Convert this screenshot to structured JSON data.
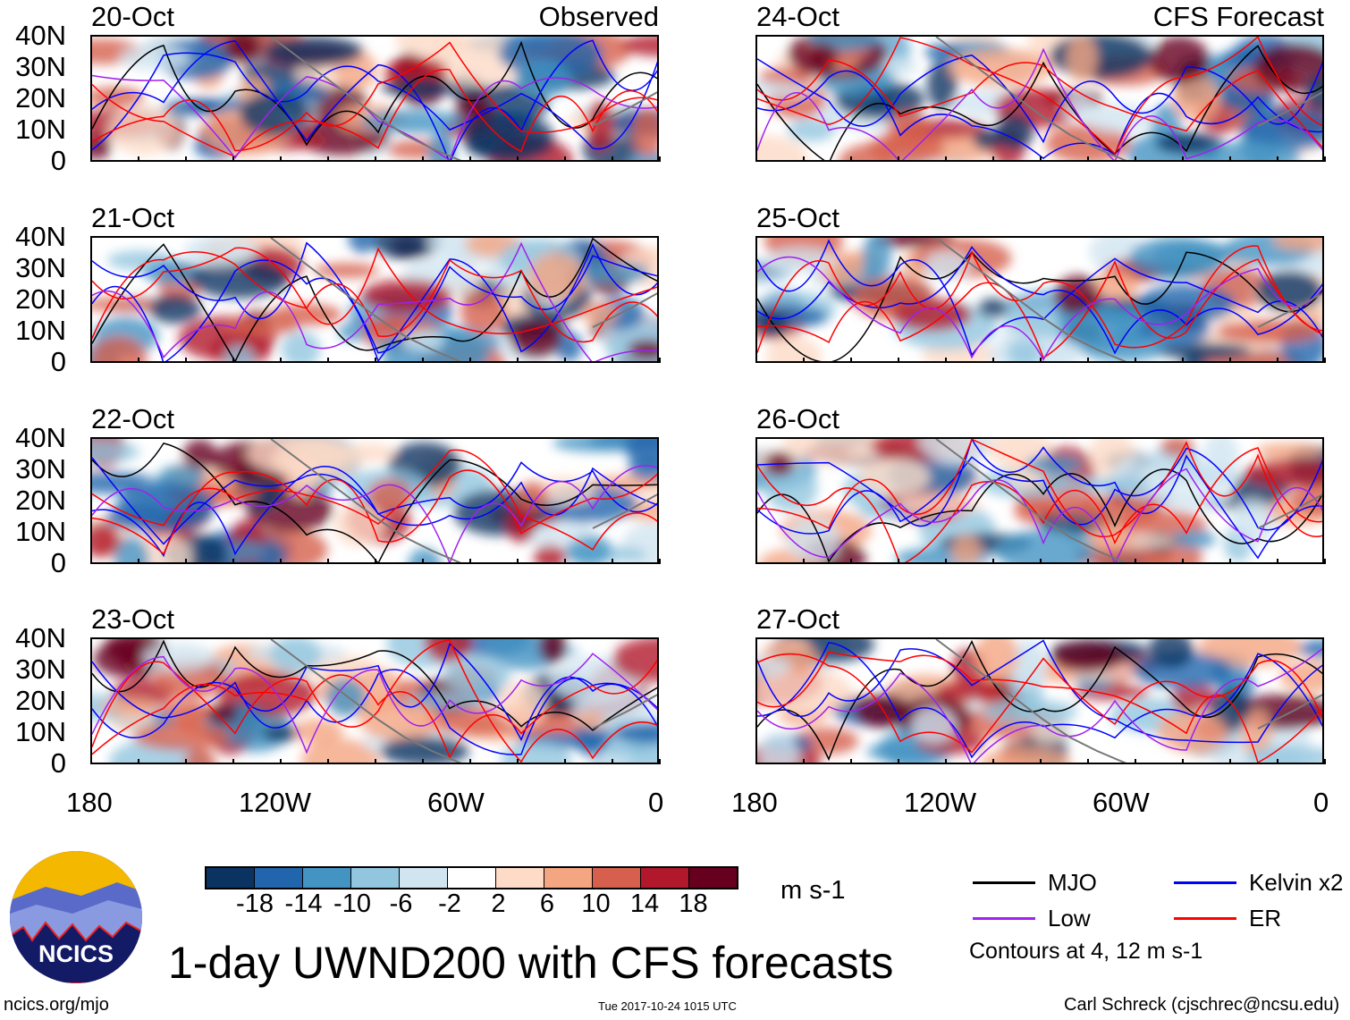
{
  "title": "1-day UWND200 with CFS forecasts",
  "footer": {
    "left": "ncics.org/mjo",
    "center": "Tue 2017-10-24 1015 UTC",
    "right": "Carl Schreck (cjschrec@ncsu.edu)"
  },
  "logo_text": "NCICS",
  "columns": {
    "left": "Observed",
    "right": "CFS Forecast"
  },
  "panels": [
    {
      "date": "20-Oct",
      "col": 0,
      "row": 0
    },
    {
      "date": "21-Oct",
      "col": 0,
      "row": 1
    },
    {
      "date": "22-Oct",
      "col": 0,
      "row": 2
    },
    {
      "date": "23-Oct",
      "col": 0,
      "row": 3
    },
    {
      "date": "24-Oct",
      "col": 1,
      "row": 0
    },
    {
      "date": "25-Oct",
      "col": 1,
      "row": 1
    },
    {
      "date": "26-Oct",
      "col": 1,
      "row": 2
    },
    {
      "date": "27-Oct",
      "col": 1,
      "row": 3
    }
  ],
  "lat_labels": [
    "40N",
    "30N",
    "20N",
    "10N",
    "0"
  ],
  "lon_labels": [
    "180",
    "120W",
    "60W",
    "0"
  ],
  "colorbar": {
    "colors": [
      "#0a3361",
      "#2166ac",
      "#4393c3",
      "#92c5de",
      "#d1e5f0",
      "#ffffff",
      "#fddbc7",
      "#f4a582",
      "#d6604d",
      "#b2182b",
      "#67001f"
    ],
    "labels": [
      "-18",
      "-14",
      "-10",
      "-6",
      "-2",
      "2",
      "6",
      "10",
      "14",
      "18"
    ],
    "units": "m s-1"
  },
  "legend": {
    "items": [
      {
        "label": "MJO",
        "color": "#000000"
      },
      {
        "label": "Kelvin x2",
        "color": "#0000ff"
      },
      {
        "label": "Low",
        "color": "#a020f0"
      },
      {
        "label": "ER",
        "color": "#ff0000"
      }
    ],
    "note": "Contours at 4, 12 m s-1"
  }
}
